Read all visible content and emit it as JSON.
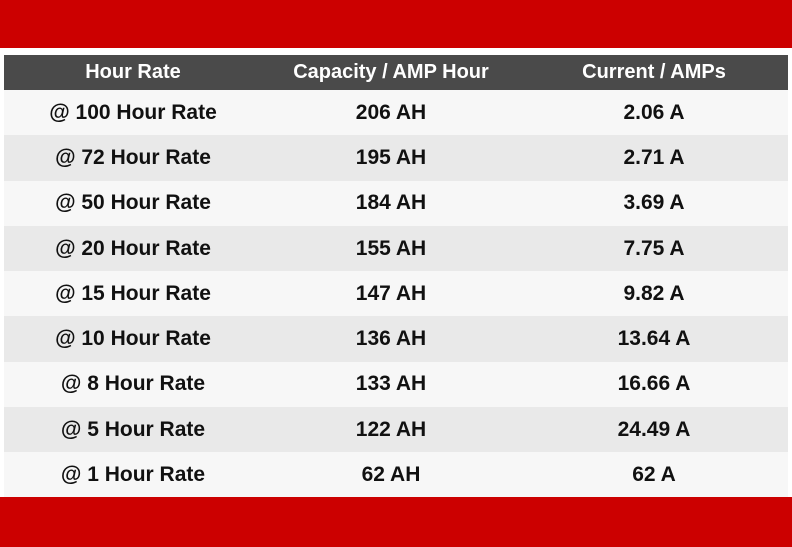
{
  "colors": {
    "band": "#cc0000",
    "header_bg": "#4a4a4a",
    "row_light": "#f7f7f7",
    "row_dark": "#e9e9e9"
  },
  "table": {
    "headers": [
      "Hour Rate",
      "Capacity / AMP Hour",
      "Current / AMPs"
    ],
    "rows": [
      [
        "@ 100 Hour Rate",
        "206 AH",
        "2.06 A"
      ],
      [
        "@ 72 Hour Rate",
        "195 AH",
        "2.71 A"
      ],
      [
        "@ 50 Hour Rate",
        "184 AH",
        "3.69 A"
      ],
      [
        "@ 20 Hour Rate",
        "155 AH",
        "7.75 A"
      ],
      [
        "@ 15 Hour Rate",
        "147 AH",
        "9.82 A"
      ],
      [
        "@ 10 Hour Rate",
        "136 AH",
        "13.64 A"
      ],
      [
        "@ 8 Hour Rate",
        "133 AH",
        "16.66 A"
      ],
      [
        "@ 5 Hour Rate",
        "122 AH",
        "24.49 A"
      ],
      [
        "@ 1 Hour Rate",
        "62 AH",
        "62 A"
      ]
    ]
  }
}
